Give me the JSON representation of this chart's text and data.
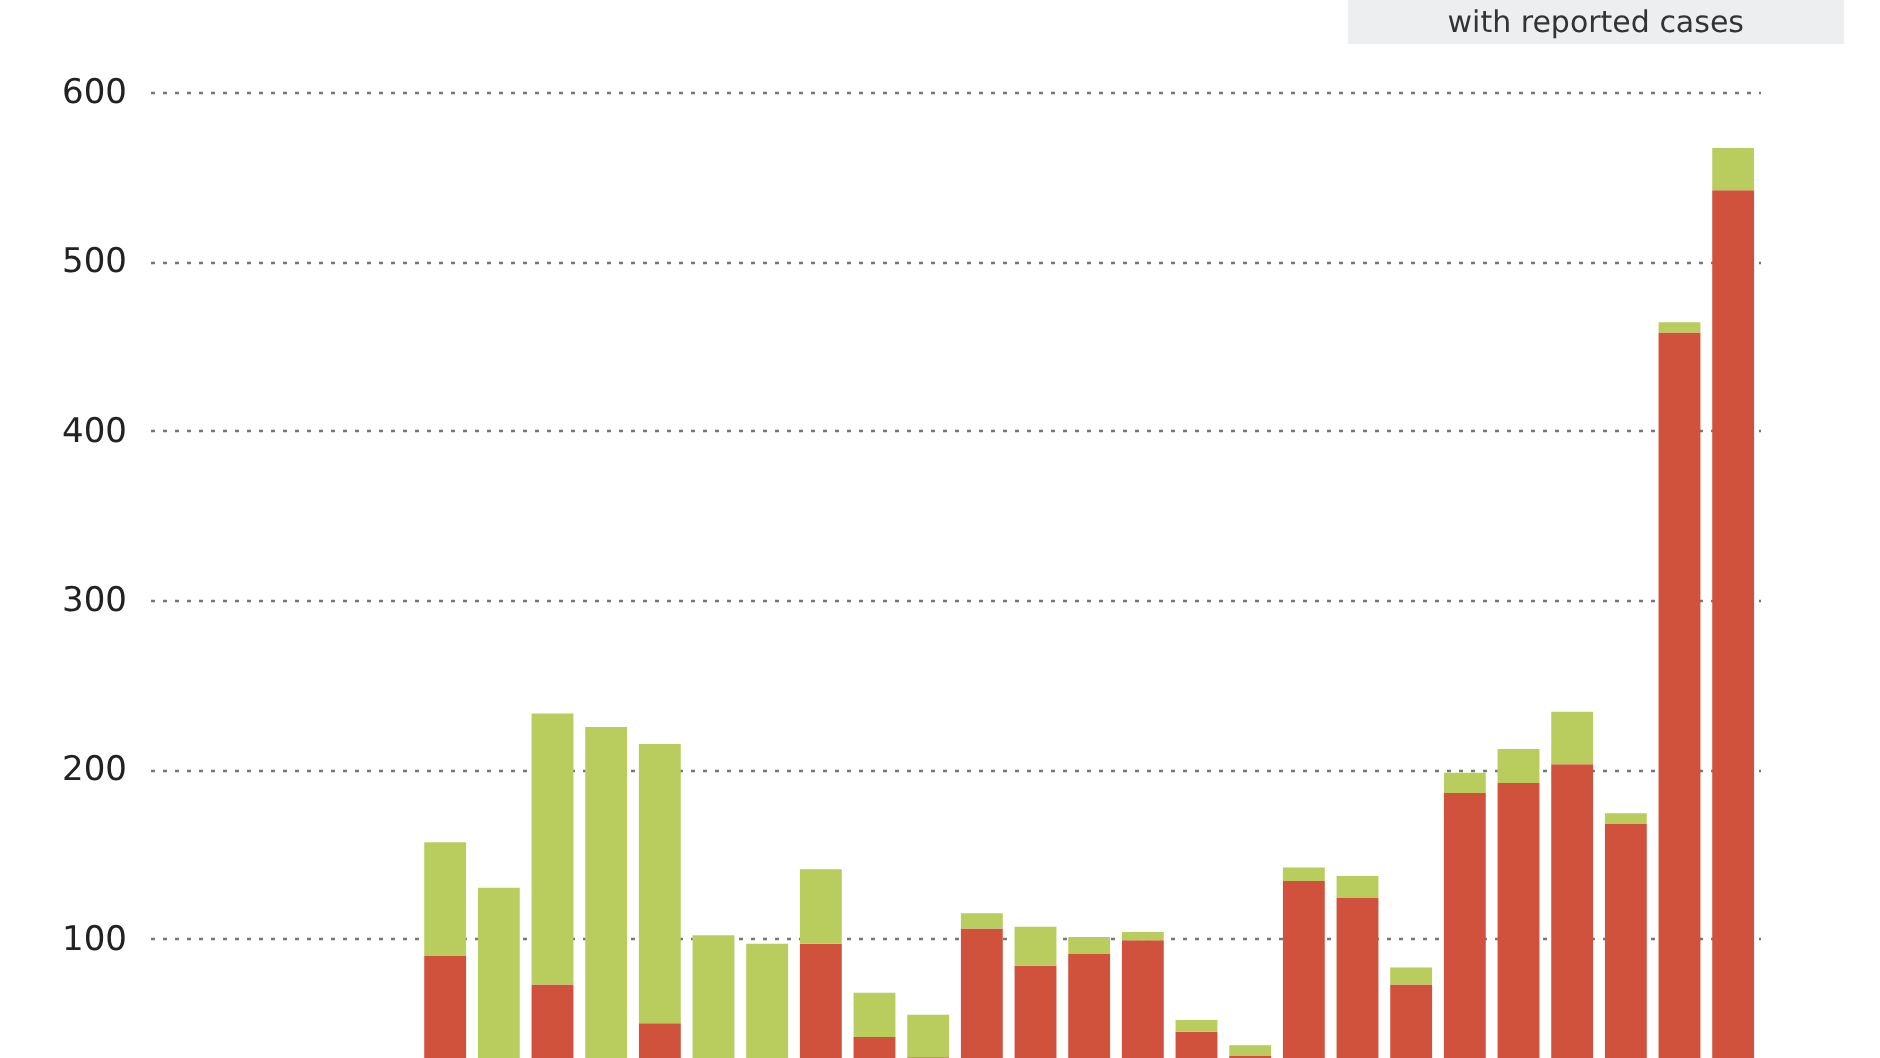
{
  "chart_data": {
    "type": "bar",
    "stacked": true,
    "relative": false,
    "annotations": [
      "with reported cases"
    ],
    "categories": [
      null,
      null,
      null,
      null,
      null,
      null,
      null,
      null,
      null,
      null,
      null,
      null,
      null,
      null,
      null,
      null,
      null,
      null,
      null,
      null,
      null,
      null,
      null,
      null,
      null,
      null,
      null,
      null,
      null,
      null
    ],
    "series": [
      {
        "color": "#d0523d",
        "values": [
          0,
          0,
          0,
          0,
          0,
          90,
          0,
          73,
          0,
          50,
          0,
          0,
          97,
          42,
          30,
          106,
          84,
          91,
          99,
          45,
          31,
          134,
          124,
          73,
          186,
          192,
          203,
          168,
          458,
          542
        ]
      },
      {
        "color": "#b9cc5e",
        "values": [
          0,
          0,
          0,
          0,
          0,
          67,
          130,
          160,
          225,
          165,
          102,
          97,
          44,
          26,
          25,
          9,
          23,
          10,
          5,
          7,
          6,
          8,
          13,
          10,
          12,
          20,
          31,
          6,
          6,
          25
        ]
      }
    ],
    "ylim": [
      0,
      600
    ],
    "yticks": [
      100,
      200,
      300,
      400,
      500,
      600
    ],
    "grid": "y",
    "tick_labels": "y"
  }
}
